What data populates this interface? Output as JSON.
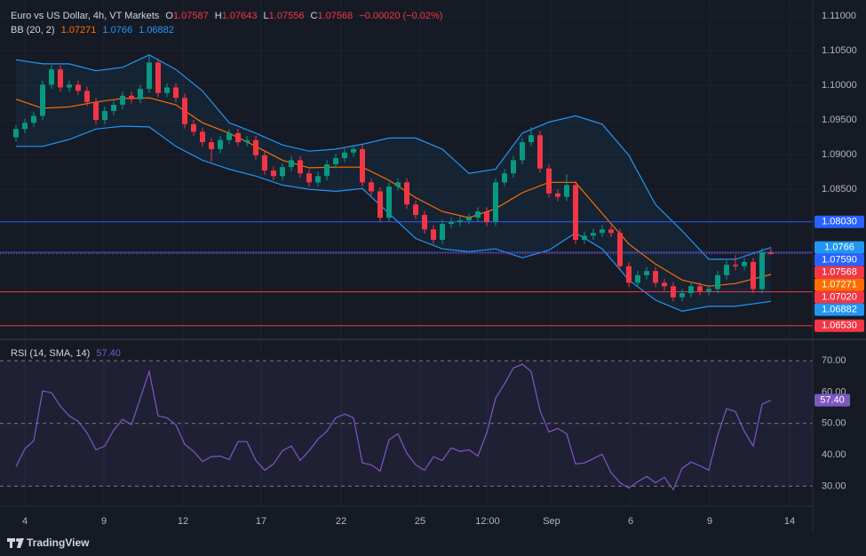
{
  "header": {
    "title": "Euro vs US Dollar, 4h, VT Markets",
    "o": "O",
    "h": "H",
    "l": "L",
    "c": "C",
    "change": "−0.00020 (−0.02%)"
  },
  "brand": "TradingView",
  "chart_data": [
    {
      "type": "candlestick",
      "xlim": [
        -1,
        89.7
      ],
      "ylim": [
        1.0636,
        1.1113
      ],
      "yticks": [
        {
          "value": 1.11,
          "label": "1.11000"
        },
        {
          "value": 1.105,
          "label": "1.10500"
        },
        {
          "value": 1.1,
          "label": "1.10000"
        },
        {
          "value": 1.095,
          "label": "1.09500"
        },
        {
          "value": 1.09,
          "label": "1.09000"
        },
        {
          "value": 1.085,
          "label": "1.08500"
        }
      ],
      "grid": true,
      "up_color": "#089981",
      "down_color": "#f23645",
      "open": [
        1.0925,
        1.0937,
        1.0946,
        1.0956,
        1.1001,
        1.1023,
        1.0997,
        1.1001,
        1.0992,
        1.0976,
        1.095,
        1.0963,
        1.0972,
        1.0985,
        1.098,
        1.0995,
        1.1033,
        1.0989,
        1.0997,
        1.0982,
        1.0944,
        1.0933,
        1.0918,
        1.0908,
        1.0921,
        1.0931,
        1.0918,
        1.0921,
        1.0899,
        1.0877,
        1.0869,
        1.0882,
        1.0892,
        1.0873,
        1.086,
        1.0869,
        1.0886,
        1.0895,
        1.0903,
        1.0908,
        1.086,
        1.0847,
        1.0809,
        1.0854,
        1.086,
        1.0828,
        1.0813,
        1.0792,
        1.0777,
        1.08,
        1.0803,
        1.0805,
        1.0809,
        1.0818,
        1.0803,
        1.086,
        1.0873,
        1.0892,
        1.0918,
        1.0928,
        1.088,
        1.0844,
        1.0839,
        1.0856,
        1.0777,
        1.0783,
        1.0787,
        1.0792,
        1.0787,
        1.0739,
        1.0715,
        1.0726,
        1.0732,
        1.0715,
        1.071,
        1.0694,
        1.07,
        1.071,
        1.0703,
        1.0706,
        1.0726,
        1.0741,
        1.0739,
        1.0745,
        1.0706,
        1.07587
      ],
      "high": [
        1.0943,
        1.0952,
        1.0962,
        1.1007,
        1.1029,
        1.1029,
        1.1007,
        1.1007,
        1.0998,
        1.0982,
        1.0969,
        1.0978,
        1.0991,
        1.0991,
        1.1001,
        1.1045,
        1.1039,
        1.1003,
        1.1003,
        1.0988,
        1.095,
        1.0939,
        1.0924,
        1.0927,
        1.0937,
        1.0937,
        1.0927,
        1.0927,
        1.0905,
        1.0883,
        1.0888,
        1.0898,
        1.0898,
        1.0879,
        1.0875,
        1.0892,
        1.0901,
        1.0909,
        1.0914,
        1.0914,
        1.0866,
        1.0853,
        1.086,
        1.0866,
        1.0866,
        1.0834,
        1.0819,
        1.0798,
        1.0806,
        1.0809,
        1.0811,
        1.0815,
        1.0824,
        1.0824,
        1.0866,
        1.0879,
        1.0898,
        1.0924,
        1.094,
        1.0934,
        1.0886,
        1.085,
        1.0872,
        1.0862,
        1.0789,
        1.0793,
        1.0798,
        1.0798,
        1.0793,
        1.0745,
        1.0732,
        1.0738,
        1.0738,
        1.0721,
        1.0716,
        1.0706,
        1.0716,
        1.0716,
        1.0712,
        1.0732,
        1.0747,
        1.0755,
        1.0751,
        1.0751,
        1.0765,
        1.07643
      ],
      "low": [
        1.0919,
        1.0931,
        1.094,
        1.095,
        1.0995,
        1.0991,
        1.0991,
        1.0986,
        1.097,
        1.0944,
        1.0944,
        1.0957,
        1.0966,
        1.0974,
        1.0974,
        1.0989,
        1.0983,
        1.0983,
        1.0976,
        1.0938,
        1.0927,
        1.0912,
        1.089,
        1.0902,
        1.0915,
        1.0912,
        1.0912,
        1.0893,
        1.0871,
        1.0863,
        1.0863,
        1.0876,
        1.0867,
        1.0854,
        1.0854,
        1.0863,
        1.088,
        1.0889,
        1.0897,
        1.0854,
        1.0841,
        1.0803,
        1.0803,
        1.0848,
        1.0822,
        1.0807,
        1.0786,
        1.0771,
        1.0771,
        1.0794,
        1.0797,
        1.0799,
        1.0803,
        1.0797,
        1.0797,
        1.0854,
        1.0867,
        1.0886,
        1.0912,
        1.0874,
        1.0838,
        1.0833,
        1.0833,
        1.0771,
        1.0771,
        1.0777,
        1.0781,
        1.0781,
        1.0733,
        1.0709,
        1.0709,
        1.072,
        1.0709,
        1.0704,
        1.0688,
        1.0688,
        1.0694,
        1.0697,
        1.0697,
        1.07,
        1.072,
        1.0733,
        1.0733,
        1.07,
        1.07,
        1.07556
      ],
      "close": [
        1.0937,
        1.0946,
        1.0956,
        1.1001,
        1.1023,
        1.0997,
        1.1001,
        1.0992,
        1.0976,
        1.095,
        1.0963,
        1.0972,
        1.0985,
        1.098,
        1.0995,
        1.1033,
        1.0989,
        1.0997,
        1.0982,
        1.0944,
        1.0933,
        1.0918,
        1.0908,
        1.0921,
        1.0931,
        1.0918,
        1.0921,
        1.0899,
        1.0877,
        1.0869,
        1.0882,
        1.0892,
        1.0873,
        1.086,
        1.0869,
        1.0886,
        1.0895,
        1.0903,
        1.0908,
        1.086,
        1.0847,
        1.0809,
        1.0854,
        1.086,
        1.0828,
        1.0813,
        1.0792,
        1.0777,
        1.08,
        1.0803,
        1.0805,
        1.0809,
        1.0818,
        1.0803,
        1.086,
        1.0873,
        1.0892,
        1.0918,
        1.0928,
        1.088,
        1.0844,
        1.0839,
        1.0856,
        1.0777,
        1.0783,
        1.0787,
        1.0792,
        1.0787,
        1.0739,
        1.0715,
        1.0726,
        1.0732,
        1.0715,
        1.071,
        1.0694,
        1.07,
        1.071,
        1.0703,
        1.0706,
        1.0726,
        1.0741,
        1.0739,
        1.0745,
        1.0706,
        1.0759,
        1.07568
      ],
      "bb": {
        "name": "BB (20, 2)",
        "band_color": "#2196f3",
        "mid_color": "#ff6d00",
        "x": [
          0,
          3,
          6,
          9,
          12,
          15,
          18,
          21,
          24,
          27,
          30,
          33,
          36,
          39,
          42,
          45,
          48,
          51,
          54,
          57,
          60,
          63,
          66,
          69,
          72,
          75,
          78,
          81,
          85
        ],
        "mid": [
          1.098,
          1.0967,
          1.0969,
          1.0976,
          1.0981,
          1.0982,
          1.0972,
          1.0946,
          1.0931,
          1.0912,
          1.0892,
          1.0881,
          1.0882,
          1.0882,
          1.0863,
          1.0838,
          1.0818,
          1.0809,
          1.0822,
          1.0845,
          1.086,
          1.086,
          1.0815,
          1.0771,
          1.0742,
          1.0719,
          1.071,
          1.0714,
          1.07271
        ],
        "upper": [
          1.1037,
          1.1031,
          1.1031,
          1.1021,
          1.1026,
          1.1044,
          1.1023,
          1.0992,
          1.0946,
          1.0931,
          1.0914,
          1.0905,
          1.0908,
          1.0915,
          1.0924,
          1.0924,
          1.0908,
          1.0873,
          1.0879,
          1.0931,
          1.0947,
          1.0956,
          1.0944,
          1.0899,
          1.0828,
          1.079,
          1.0749,
          1.0749,
          1.0766
        ],
        "lower": [
          1.0912,
          1.0912,
          1.0922,
          1.0937,
          1.0941,
          1.094,
          1.0912,
          1.0892,
          1.0879,
          1.0869,
          1.0856,
          1.085,
          1.0847,
          1.0851,
          1.0815,
          1.0779,
          1.0764,
          1.076,
          1.0764,
          1.0751,
          1.0762,
          1.0787,
          1.0764,
          1.0719,
          1.069,
          1.0674,
          1.0681,
          1.0681,
          1.06882
        ]
      },
      "levels": [
        {
          "value": 1.0803,
          "label": "1.08030",
          "color": "#2962ff"
        },
        {
          "value": 1.0759,
          "label": "1.07590",
          "color": "#2962ff"
        },
        {
          "value": 1.0702,
          "label": "1.07020",
          "color": "#f23645"
        },
        {
          "value": 1.0653,
          "label": "1.06530",
          "color": "#f23645"
        }
      ]
    },
    {
      "type": "line",
      "name": "RSI (14, SMA, 14)",
      "color": "#7e57c2",
      "xlim": [
        -1,
        89.7
      ],
      "ylim": [
        25,
        76
      ],
      "yticks": [
        {
          "value": 70,
          "label": "70.00"
        },
        {
          "value": 60,
          "label": "60.00"
        },
        {
          "value": 50,
          "label": "50.00"
        },
        {
          "value": 40,
          "label": "40.00"
        },
        {
          "value": 30,
          "label": "30.00"
        }
      ],
      "bands": [
        70,
        50,
        30
      ],
      "xticks": [
        {
          "value": 1,
          "label": "4"
        },
        {
          "value": 9.9,
          "label": "9"
        },
        {
          "value": 18.8,
          "label": "12"
        },
        {
          "value": 27.6,
          "label": "17"
        },
        {
          "value": 36.6,
          "label": "22"
        },
        {
          "value": 45.5,
          "label": "25"
        },
        {
          "value": 53.1,
          "label": "12:00"
        },
        {
          "value": 60.3,
          "label": "Sep"
        },
        {
          "value": 69.2,
          "label": "6"
        },
        {
          "value": 78.1,
          "label": "9"
        },
        {
          "value": 87.1,
          "label": "14"
        }
      ],
      "values": [
        36.2,
        41.9,
        44.5,
        60.4,
        59.8,
        55.5,
        52.4,
        50.7,
        47.0,
        41.6,
        42.8,
        47.9,
        51.3,
        49.6,
        58.1,
        66.6,
        52.4,
        51.8,
        49.6,
        43.3,
        41.1,
        37.9,
        39.4,
        39.6,
        38.5,
        44.2,
        44.2,
        38.2,
        35.1,
        37.1,
        41.3,
        42.8,
        38.2,
        41.3,
        45.0,
        47.5,
        51.8,
        53.0,
        51.8,
        37.4,
        36.8,
        34.8,
        44.8,
        46.7,
        40.5,
        36.8,
        35.1,
        39.4,
        38.2,
        42.2,
        41.1,
        41.6,
        39.6,
        47.0,
        58.1,
        62.6,
        67.7,
        68.9,
        66.6,
        54.1,
        47.3,
        48.4,
        46.7,
        37.1,
        37.4,
        38.8,
        40.2,
        34.3,
        31.1,
        29.4,
        31.4,
        33.1,
        31.1,
        32.8,
        28.9,
        35.7,
        37.7,
        36.5,
        35.1,
        46.2,
        54.7,
        53.8,
        47.5,
        42.8,
        56.1,
        57.4
      ],
      "last_label": "57.40"
    }
  ]
}
